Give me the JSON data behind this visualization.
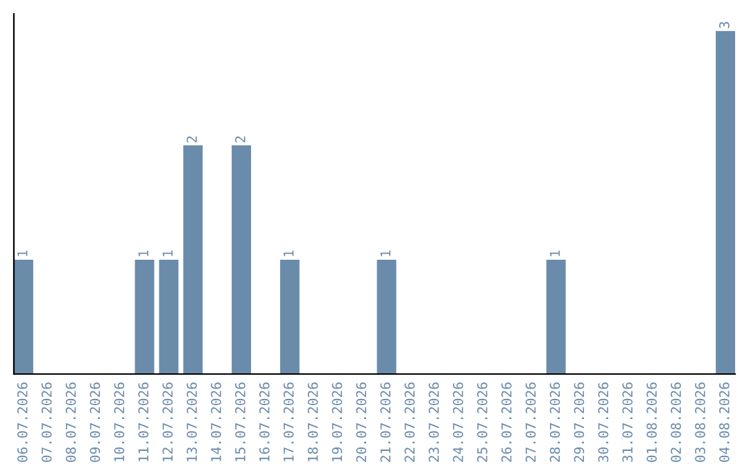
{
  "chart_data": {
    "type": "bar",
    "categories": [
      "06.07.2026",
      "07.07.2026",
      "08.07.2026",
      "09.07.2026",
      "10.07.2026",
      "11.07.2026",
      "12.07.2026",
      "13.07.2026",
      "14.07.2026",
      "15.07.2026",
      "16.07.2026",
      "17.07.2026",
      "18.07.2026",
      "19.07.2026",
      "20.07.2026",
      "21.07.2026",
      "22.07.2026",
      "23.07.2026",
      "24.07.2026",
      "25.07.2026",
      "26.07.2026",
      "27.07.2026",
      "28.07.2026",
      "29.07.2026",
      "30.07.2026",
      "31.07.2026",
      "01.08.2026",
      "02.08.2026",
      "03.08.2026",
      "04.08.2026"
    ],
    "values": [
      1,
      0,
      0,
      0,
      0,
      1,
      1,
      2,
      0,
      2,
      0,
      1,
      0,
      0,
      0,
      1,
      0,
      0,
      0,
      0,
      0,
      0,
      1,
      0,
      0,
      0,
      0,
      0,
      0,
      3
    ],
    "value_labels": [
      "1",
      null,
      null,
      null,
      null,
      "1",
      "1",
      "2",
      null,
      "2",
      null,
      "1",
      null,
      null,
      null,
      "1",
      null,
      null,
      null,
      null,
      null,
      null,
      "1",
      null,
      null,
      null,
      null,
      null,
      null,
      "3"
    ],
    "color": "#6b8bab",
    "grid": false,
    "legend": false
  }
}
